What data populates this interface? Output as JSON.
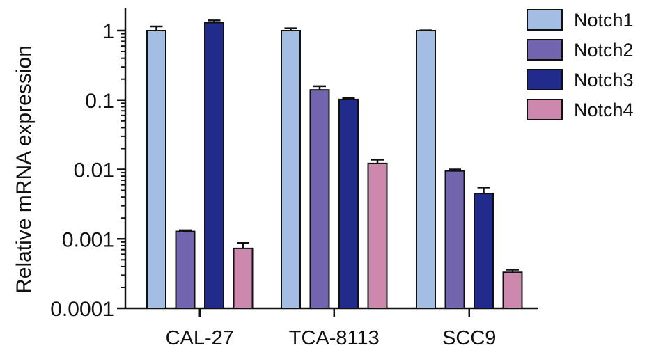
{
  "chart_data": {
    "type": "bar",
    "yscale": "log",
    "ylabel": "Relative mRNA expression",
    "xlabel": "",
    "title": "",
    "ylim": [
      0.0001,
      1
    ],
    "yticks": [
      {
        "value": 1,
        "label": "1"
      },
      {
        "value": 0.1,
        "label": "0.1"
      },
      {
        "value": 0.01,
        "label": "0.01"
      },
      {
        "value": 0.001,
        "label": "0.001"
      },
      {
        "value": 0.0001,
        "label": "0.0001"
      }
    ],
    "categories": [
      "CAL-27",
      "TCA-8113",
      "SCC9"
    ],
    "series": [
      {
        "name": "Notch1",
        "color": "#a3bde3",
        "values": [
          1.0,
          1.0,
          1.0
        ],
        "error": [
          0.15,
          0.08,
          0.01
        ]
      },
      {
        "name": "Notch2",
        "color": "#7364b0",
        "values": [
          0.00128,
          0.14,
          0.0095
        ],
        "error": [
          5e-05,
          0.018,
          0.0005
        ]
      },
      {
        "name": "Notch3",
        "color": "#202b8c",
        "values": [
          1.3,
          0.102,
          0.0045
        ],
        "error": [
          0.1,
          0.004,
          0.001
        ]
      },
      {
        "name": "Notch4",
        "color": "#cc88ad",
        "values": [
          0.00073,
          0.0122,
          0.00033
        ],
        "error": [
          0.00014,
          0.0016,
          3e-05
        ]
      }
    ],
    "grid": false,
    "legend_position": "top-right"
  }
}
